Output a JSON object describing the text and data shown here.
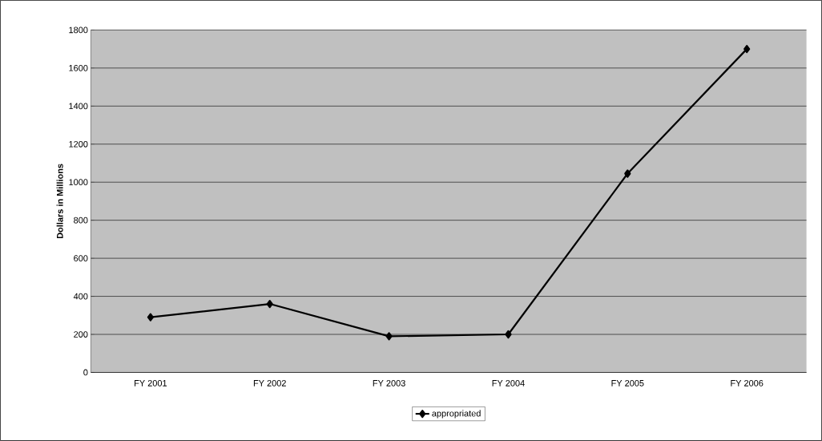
{
  "chart_data": {
    "type": "line",
    "ylabel": "**Dollars in Millions**",
    "categories": [
      "FY 2001",
      "FY 2002",
      "FY 2003",
      "FY 2004",
      "FY 2005",
      "FY 2006"
    ],
    "series": [
      {
        "name": "appropriated",
        "color": "#000000",
        "values": [
          290,
          360,
          190,
          200,
          1045,
          1700
        ]
      }
    ],
    "ylim": [
      0,
      1800
    ],
    "yticks": [
      0,
      200,
      400,
      600,
      800,
      1000,
      1200,
      1400,
      1600,
      1800
    ],
    "grid": "y",
    "legend": "bottom",
    "marker": "diamond",
    "line_style": "solid"
  }
}
